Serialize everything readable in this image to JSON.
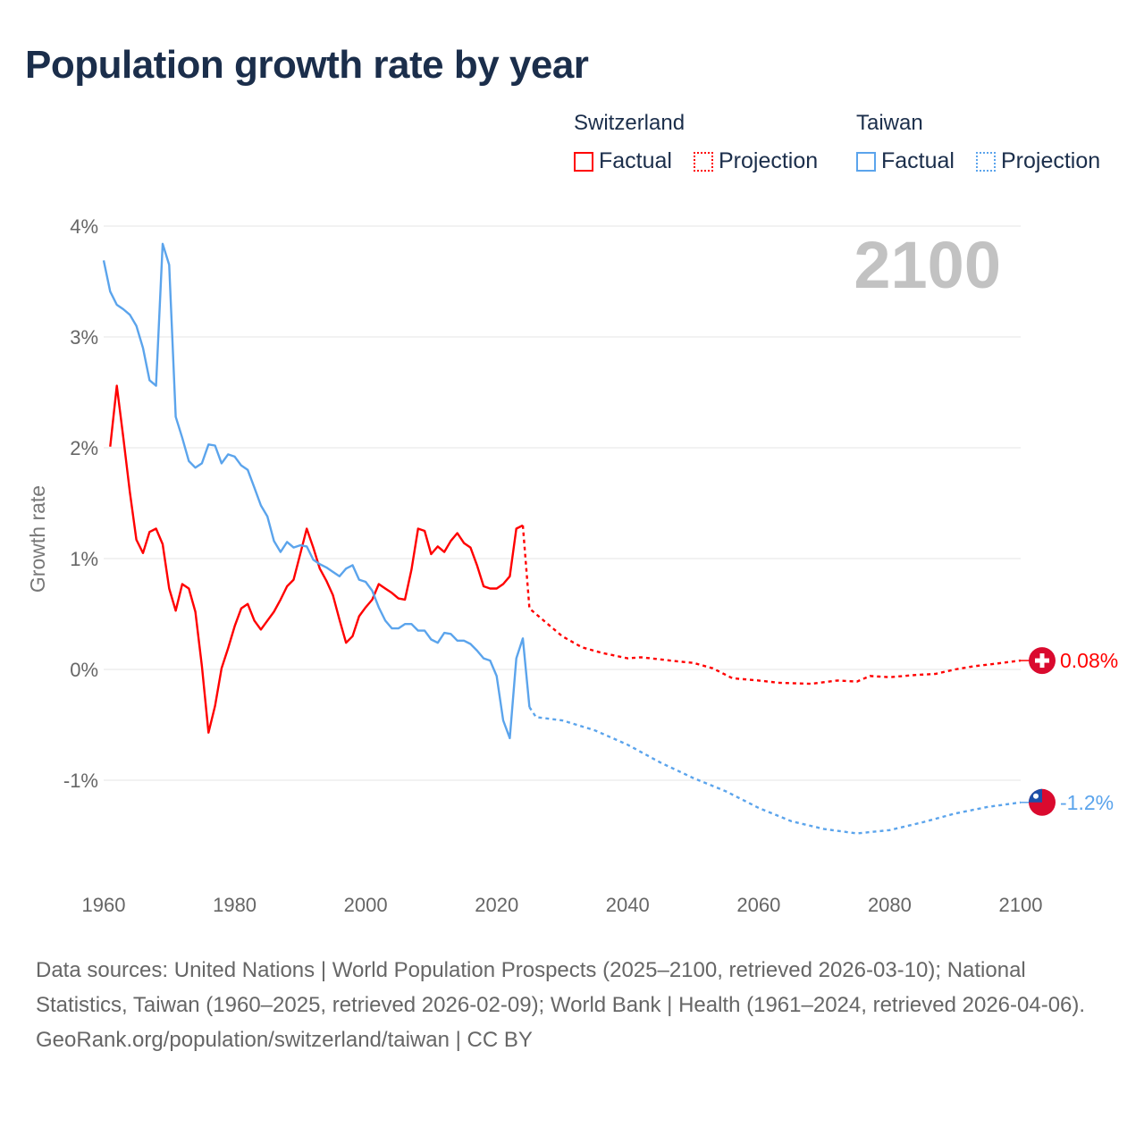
{
  "title": "Population growth rate by year",
  "legend": {
    "groups": [
      {
        "country": "Switzerland",
        "factual": "Factual",
        "projection": "Projection",
        "color": "#ff0000"
      },
      {
        "country": "Taiwan",
        "factual": "Factual",
        "projection": "Projection",
        "color": "#5ba4ec"
      }
    ]
  },
  "footer": {
    "sources": "Data sources: United Nations | World Population Prospects (2025–2100, retrieved 2026-03-10); National Statistics, Taiwan (1960–2025, retrieved 2026-02-09); World Bank | Health (1961–2024, retrieved 2026-04-06).",
    "credit": "GeoRank.org/population/switzerland/taiwan | CC BY"
  },
  "chart_data": {
    "type": "line",
    "title": "Population growth rate by year",
    "ylabel": "Growth rate",
    "xlabel": "",
    "year_label": "2100",
    "xlim": [
      1960,
      2100
    ],
    "ylim": [
      -1.9,
      4.0
    ],
    "x_ticks": [
      1960,
      1980,
      2000,
      2020,
      2040,
      2060,
      2080,
      2100
    ],
    "y_ticks": [
      {
        "v": 4,
        "label": "4%"
      },
      {
        "v": 3,
        "label": "3%"
      },
      {
        "v": 2,
        "label": "2%"
      },
      {
        "v": 1,
        "label": "1%"
      },
      {
        "v": 0,
        "label": "0%"
      },
      {
        "v": -1,
        "label": "-1%"
      }
    ],
    "grid": true,
    "legend_position": "top-right",
    "series": [
      {
        "name": "Switzerland",
        "color": "#ff0000",
        "end_label": "0.08%",
        "flag": "switzerland",
        "factual_start": 1961,
        "factual": [
          2.01,
          2.56,
          2.09,
          1.6,
          1.17,
          1.05,
          1.24,
          1.27,
          1.13,
          0.73,
          0.53,
          0.77,
          0.73,
          0.52,
          0.03,
          -0.57,
          -0.33,
          0.01,
          0.19,
          0.39,
          0.55,
          0.59,
          0.44,
          0.36,
          0.44,
          0.52,
          0.63,
          0.75,
          0.81,
          1.04,
          1.27,
          1.1,
          0.91,
          0.8,
          0.67,
          0.45,
          0.24,
          0.3,
          0.48,
          0.56,
          0.63,
          0.77,
          0.73,
          0.69,
          0.64,
          0.63,
          0.9,
          1.27,
          1.25,
          1.04,
          1.11,
          1.06,
          1.16,
          1.23,
          1.14,
          1.1,
          0.94,
          0.75,
          0.73,
          0.73,
          0.77,
          0.84,
          1.27,
          1.3
        ],
        "projection": [
          [
            2024,
            1.3
          ],
          [
            2025,
            0.55
          ],
          [
            2026,
            0.5
          ],
          [
            2028,
            0.4
          ],
          [
            2030,
            0.3
          ],
          [
            2033,
            0.2
          ],
          [
            2036,
            0.15
          ],
          [
            2040,
            0.1
          ],
          [
            2042,
            0.11
          ],
          [
            2045,
            0.09
          ],
          [
            2048,
            0.07
          ],
          [
            2050,
            0.06
          ],
          [
            2053,
            0.01
          ],
          [
            2056,
            -0.08
          ],
          [
            2060,
            -0.1
          ],
          [
            2063,
            -0.12
          ],
          [
            2068,
            -0.13
          ],
          [
            2072,
            -0.1
          ],
          [
            2075,
            -0.11
          ],
          [
            2077,
            -0.06
          ],
          [
            2080,
            -0.07
          ],
          [
            2084,
            -0.05
          ],
          [
            2087,
            -0.04
          ],
          [
            2090,
            0.0
          ],
          [
            2093,
            0.03
          ],
          [
            2096,
            0.05
          ],
          [
            2100,
            0.08
          ]
        ]
      },
      {
        "name": "Taiwan",
        "color": "#5ba4ec",
        "end_label": "-1.2%",
        "flag": "taiwan",
        "factual_start": 1960,
        "factual": [
          3.69,
          3.41,
          3.29,
          3.25,
          3.2,
          3.1,
          2.9,
          2.61,
          2.56,
          3.84,
          3.65,
          2.28,
          2.09,
          1.88,
          1.82,
          1.86,
          2.03,
          2.02,
          1.86,
          1.94,
          1.92,
          1.84,
          1.8,
          1.64,
          1.48,
          1.38,
          1.16,
          1.06,
          1.15,
          1.1,
          1.12,
          1.11,
          0.99,
          0.95,
          0.92,
          0.88,
          0.84,
          0.91,
          0.94,
          0.81,
          0.79,
          0.71,
          0.56,
          0.44,
          0.37,
          0.37,
          0.41,
          0.41,
          0.35,
          0.35,
          0.27,
          0.24,
          0.33,
          0.32,
          0.26,
          0.26,
          0.23,
          0.17,
          0.1,
          0.08,
          -0.06,
          -0.46,
          -0.62,
          0.1,
          0.28,
          -0.34
        ],
        "projection": [
          [
            2025,
            -0.34
          ],
          [
            2026,
            -0.43
          ],
          [
            2030,
            -0.46
          ],
          [
            2035,
            -0.55
          ],
          [
            2040,
            -0.68
          ],
          [
            2045,
            -0.84
          ],
          [
            2050,
            -0.98
          ],
          [
            2055,
            -1.1
          ],
          [
            2060,
            -1.25
          ],
          [
            2065,
            -1.37
          ],
          [
            2070,
            -1.44
          ],
          [
            2075,
            -1.48
          ],
          [
            2080,
            -1.45
          ],
          [
            2085,
            -1.38
          ],
          [
            2090,
            -1.3
          ],
          [
            2095,
            -1.24
          ],
          [
            2100,
            -1.2
          ]
        ]
      }
    ]
  }
}
